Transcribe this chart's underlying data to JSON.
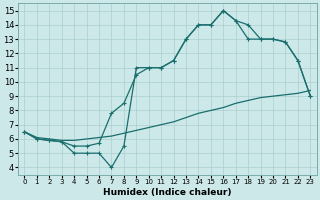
{
  "xlabel": "Humidex (Indice chaleur)",
  "xlim": [
    -0.5,
    23.5
  ],
  "ylim": [
    3.5,
    15.5
  ],
  "xticks": [
    0,
    1,
    2,
    3,
    4,
    5,
    6,
    7,
    8,
    9,
    10,
    11,
    12,
    13,
    14,
    15,
    16,
    17,
    18,
    19,
    20,
    21,
    22,
    23
  ],
  "yticks": [
    4,
    5,
    6,
    7,
    8,
    9,
    10,
    11,
    12,
    13,
    14,
    15
  ],
  "bg_color": "#cce8e8",
  "grid_color": "#aacfcf",
  "line_color": "#1a6e6e",
  "line1_x": [
    0,
    1,
    2,
    3,
    4,
    5,
    6,
    7,
    8,
    9,
    10,
    11,
    12,
    13,
    14,
    15,
    16,
    17,
    18,
    19,
    20,
    21,
    22,
    23
  ],
  "line1_y": [
    6.5,
    6.0,
    5.9,
    5.8,
    5.0,
    5.0,
    5.0,
    4.0,
    5.5,
    11.0,
    11.0,
    11.0,
    11.5,
    13.0,
    14.0,
    14.0,
    15.0,
    14.3,
    13.0,
    13.0,
    13.0,
    12.8,
    11.5,
    9.0
  ],
  "line2_x": [
    0,
    1,
    2,
    3,
    4,
    5,
    6,
    7,
    8,
    9,
    10,
    11,
    12,
    13,
    14,
    15,
    16,
    17,
    18,
    19,
    20,
    21,
    22,
    23
  ],
  "line2_y": [
    6.5,
    6.0,
    5.9,
    5.8,
    5.5,
    5.5,
    5.7,
    7.8,
    8.5,
    10.5,
    11.0,
    11.0,
    11.5,
    13.0,
    14.0,
    14.0,
    15.0,
    14.3,
    14.0,
    13.0,
    13.0,
    12.8,
    11.5,
    9.0
  ],
  "line3_x": [
    0,
    1,
    2,
    3,
    4,
    5,
    6,
    7,
    8,
    9,
    10,
    11,
    12,
    13,
    14,
    15,
    16,
    17,
    18,
    19,
    20,
    21,
    22,
    23
  ],
  "line3_y": [
    6.5,
    6.1,
    6.0,
    5.9,
    5.9,
    6.0,
    6.1,
    6.2,
    6.4,
    6.6,
    6.8,
    7.0,
    7.2,
    7.5,
    7.8,
    8.0,
    8.2,
    8.5,
    8.7,
    8.9,
    9.0,
    9.1,
    9.2,
    9.4
  ],
  "marker_style": "+",
  "marker_size": 3,
  "linewidth": 0.9,
  "xlabel_fontsize": 6.5,
  "tick_fontsize_x": 5.0,
  "tick_fontsize_y": 6.0
}
